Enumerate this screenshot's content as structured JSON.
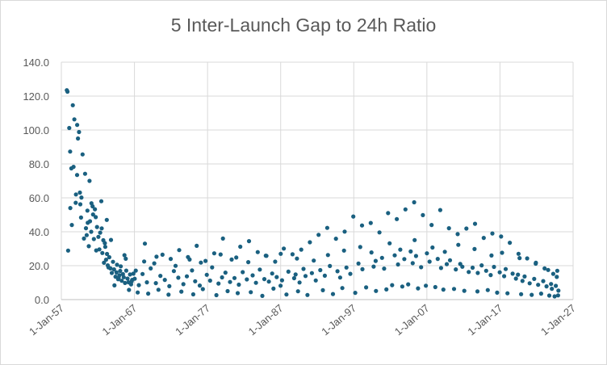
{
  "chart_data": {
    "type": "scatter",
    "title": "5 Inter-Launch Gap to 24h Ratio",
    "xlabel": "",
    "ylabel": "",
    "x_axis": {
      "type": "date",
      "min": "1957-01-01",
      "max": "2027-01-01",
      "ticks": [
        "1-Jan-57",
        "1-Jan-67",
        "1-Jan-77",
        "1-Jan-87",
        "1-Jan-97",
        "1-Jan-07",
        "1-Jan-17",
        "1-Jan-27"
      ]
    },
    "y_axis": {
      "min": 0,
      "max": 140,
      "ticks": [
        "0.0",
        "20.0",
        "40.0",
        "60.0",
        "80.0",
        "100.0",
        "120.0",
        "140.0"
      ]
    },
    "grid": true,
    "legend": "none",
    "marker_color": "#1a6080",
    "series": [
      {
        "x": [
          "1957-10-04",
          "1957-11-03",
          "1958-02-01",
          "1958-03-17",
          "1958-03-26",
          "1958-05-15",
          "1958-07-26",
          "1958-10-11",
          "1958-12-18",
          "1959-01-02",
          "1959-02-28",
          "1959-04-13",
          "1959-06-03",
          "1959-08-07",
          "1959-09-12",
          "1959-10-04",
          "1959-11-26",
          "1960-02-04",
          "1960-04-01",
          "1960-05-15",
          "1960-07-28",
          "1960-08-12",
          "1960-10-04",
          "1960-12-01",
          "1961-01-31",
          "1961-02-12",
          "1961-04-12",
          "1961-06-16",
          "1961-08-06",
          "1961-09-13",
          "1961-11-18",
          "1962-01-26",
          "1962-03-16",
          "1962-04-26",
          "1962-06-19",
          "1962-08-11",
          "1962-09-29",
          "1962-11-01",
          "1963-01-04",
          "1963-02-14",
          "1963-04-02",
          "1963-05-09",
          "1963-06-14",
          "1963-07-26",
          "1963-09-21",
          "1963-11-27",
          "1964-01-25",
          "1964-03-19",
          "1964-05-28",
          "1964-07-17",
          "1964-08-14",
          "1964-10-12",
          "1964-12-15",
          "1965-02-16",
          "1965-04-06",
          "1965-06-03",
          "1965-07-16",
          "1965-09-18",
          "1965-11-16",
          "1966-01-22",
          "1966-03-16",
          "1966-05-26",
          "1966-07-18",
          "1966-09-12",
          "1966-11-11",
          "1957-12-06",
          "1958-06-10",
          "1959-03-03",
          "1959-07-16",
          "1960-06-22",
          "1961-05-05",
          "1962-07-10",
          "1963-10-17",
          "1964-04-08",
          "1965-01-19",
          "1965-10-26",
          "1966-08-10",
          "1958-09-01",
          "1960-11-10",
          "1962-12-14",
          "1964-11-05",
          "1966-04-03",
          "1961-10-10",
          "1963-03-21",
          "1965-08-21"
        ],
        "y": [
          123.5,
          122.6,
          101.2,
          87.3,
          54.0,
          77.4,
          114.6,
          106.3,
          57.1,
          62.0,
          73.5,
          95.0,
          98.8,
          56.2,
          48.4,
          60.2,
          85.6,
          36.0,
          74.2,
          42.1,
          52.5,
          45.3,
          31.5,
          46.2,
          40.0,
          56.8,
          55.0,
          35.7,
          53.3,
          48.6,
          42.8,
          37.0,
          29.6,
          39.5,
          58.0,
          27.5,
          35.0,
          21.7,
          31.1,
          23.5,
          26.9,
          20.2,
          19.0,
          25.0,
          18.4,
          15.7,
          22.3,
          17.8,
          13.5,
          16.0,
          20.5,
          12.0,
          14.4,
          19.6,
          11.1,
          15.0,
          13.2,
          9.8,
          17.1,
          12.4,
          10.2,
          14.8,
          9.0,
          11.6,
          15.3,
          28.9,
          44.0,
          103.0,
          63.1,
          38.0,
          50.2,
          42.0,
          35.2,
          8.4,
          16.9,
          24.1,
          10.6,
          78.3,
          70.0,
          33.3,
          12.7,
          5.7,
          29.0,
          47.0,
          26.2
        ]
      },
      {
        "x": [
          "1967-03-10",
          "1968-06-05",
          "1969-09-18",
          "1970-11-03",
          "1971-12-20",
          "1973-02-14",
          "1974-04-28",
          "1975-07-09",
          "1976-09-21",
          "1977-11-30",
          "1979-02-08",
          "1980-04-17",
          "1981-06-25",
          "1982-09-03",
          "1983-11-12",
          "1985-01-20",
          "1986-03-31",
          "1987-06-08",
          "1988-08-16",
          "1989-10-24",
          "1990-12-31",
          "1992-03-09",
          "1993-05-17",
          "1994-07-25",
          "1995-10-02",
          "1996-12-10",
          "1998-02-17",
          "1999-04-27",
          "2000-07-05",
          "2001-09-12",
          "2002-11-20",
          "2004-01-28",
          "2005-04-07",
          "2006-06-15",
          "2007-08-23",
          "2008-10-31",
          "2010-01-08",
          "2011-03-18",
          "2012-05-26",
          "2013-08-03",
          "2014-10-11",
          "2015-12-19",
          "2017-02-26",
          "2018-05-06",
          "2019-07-14",
          "2020-09-21",
          "2021-11-29",
          "2023-02-06",
          "2024-04-15",
          "2024-11-01"
        ],
        "y": [
          17.1,
          33.0,
          21.4,
          26.5,
          24.0,
          29.2,
          25.1,
          31.7,
          22.8,
          27.3,
          36.0,
          23.6,
          31.2,
          34.5,
          28.0,
          25.8,
          22.4,
          30.1,
          26.7,
          29.5,
          33.8,
          38.2,
          42.3,
          35.9,
          40.1,
          49.0,
          43.7,
          45.2,
          39.6,
          51.0,
          47.5,
          53.2,
          57.4,
          49.8,
          44.0,
          52.8,
          42.1,
          38.6,
          41.9,
          44.7,
          36.4,
          39.0,
          37.2,
          33.5,
          27.0,
          24.3,
          21.7,
          18.4,
          15.2,
          17.0
        ]
      },
      {
        "x": [
          "1967-06-12",
          "1968-11-20",
          "1970-04-15",
          "1971-09-02",
          "1973-06-01",
          "1975-01-15",
          "1976-05-10",
          "1978-03-20",
          "1979-10-01",
          "1981-02-14",
          "1982-12-01",
          "1984-06-30",
          "1986-01-08",
          "1987-10-20",
          "1989-05-15",
          "1990-08-30",
          "1992-10-10",
          "1994-02-25",
          "1995-06-10",
          "1997-03-14",
          "1998-09-09",
          "2000-01-15",
          "2001-06-20",
          "2002-03-30",
          "2003-08-22",
          "2004-06-10",
          "2005-10-17",
          "2006-11-11",
          "2008-02-25",
          "2009-04-04",
          "2010-09-19",
          "2012-02-14",
          "2013-11-30",
          "2015-05-01",
          "2016-08-12",
          "2018-01-10",
          "2019-11-20",
          "2021-05-05",
          "2022-08-18",
          "2023-09-30",
          "2024-06-20",
          "2024-12-10"
        ],
        "y": [
          4.2,
          3.5,
          5.8,
          2.9,
          4.7,
          3.1,
          6.2,
          2.6,
          5.0,
          3.8,
          4.4,
          2.2,
          6.5,
          3.0,
          4.9,
          2.7,
          5.5,
          3.3,
          6.8,
          4.0,
          7.2,
          5.1,
          6.0,
          8.5,
          7.7,
          9.0,
          6.6,
          8.2,
          7.4,
          5.9,
          6.3,
          5.2,
          4.8,
          5.6,
          4.1,
          3.7,
          3.2,
          2.8,
          3.5,
          2.4,
          1.9,
          2.5
        ]
      },
      {
        "x": [
          "1967-01-15",
          "1967-08-08",
          "1968-02-10",
          "1968-09-14",
          "1969-03-22",
          "1969-12-06",
          "1970-07-19",
          "1971-02-27",
          "1971-10-11",
          "1972-05-24",
          "1972-12-30",
          "1973-09-12",
          "1974-03-05",
          "1974-11-17",
          "1975-04-22",
          "1975-12-09",
          "1976-11-25",
          "1977-05-07",
          "1977-08-19",
          "1978-07-02",
          "1978-12-28",
          "1979-06-15",
          "1980-01-30",
          "1980-09-08",
          "1981-04-11",
          "1981-10-23",
          "1982-05-19",
          "1983-03-04",
          "1983-08-15",
          "1984-02-27",
          "1984-10-09",
          "1985-05-22",
          "1985-11-03",
          "1986-06-17",
          "1986-12-29",
          "1987-03-12",
          "1988-01-24",
          "1988-11-05",
          "1989-01-17",
          "1989-08-01",
          "1990-02-13",
          "1990-05-27",
          "1991-04-09",
          "1991-10-21",
          "1992-06-02",
          "1993-01-14",
          "1993-09-26",
          "1994-10-08",
          "1995-02-19",
          "1995-12-31",
          "1996-07-13",
          "1997-08-25",
          "1998-03-08",
          "1999-09-19",
          "1999-12-31",
          "2000-11-12",
          "2001-02-24",
          "2002-08-07",
          "2003-01-19",
          "2003-11-30",
          "2004-10-13",
          "2005-01-25",
          "2005-07-08",
          "2006-03-20",
          "2007-01-02",
          "2007-05-14",
          "2008-06-26",
          "2008-12-07",
          "2009-09-20",
          "2010-03-03",
          "2010-12-15",
          "2011-07-28",
          "2011-11-08",
          "2012-09-21",
          "2013-04-04",
          "2013-12-16",
          "2014-06-28",
          "2015-02-09",
          "2015-09-22",
          "2016-03-05",
          "2016-12-17",
          "2017-07-30",
          "2017-10-11",
          "2018-09-23",
          "2019-03-07",
          "2019-06-19",
          "2020-01-31",
          "2020-05-13",
          "2021-01-24",
          "2021-09-06",
          "2022-03-20",
          "2022-12-01",
          "2023-05-14",
          "2023-12-26",
          "2024-02-07",
          "2024-08-20",
          "2024-12-28",
          "1968-04-30",
          "1970-01-08",
          "1972-08-15",
          "1974-07-20",
          "1976-02-02",
          "1978-10-14",
          "1980-12-05",
          "1982-07-30",
          "1984-12-20",
          "1987-01-05",
          "1989-03-25",
          "1991-07-14",
          "1993-06-22",
          "1995-09-03",
          "1997-11-18",
          "1999-06-04",
          "2001-11-27",
          "2003-05-12",
          "2005-04-30",
          "2007-10-08",
          "2009-06-15",
          "2011-04-22",
          "2013-07-11",
          "2015-11-03",
          "2017-04-15",
          "2019-09-08",
          "2021-11-20",
          "2023-08-02",
          "2024-10-10"
        ],
        "y": [
          12.3,
          8.5,
          15.1,
          10.2,
          18.4,
          9.7,
          14.0,
          11.6,
          7.9,
          16.8,
          12.9,
          9.1,
          13.7,
          17.2,
          10.8,
          8.3,
          14.6,
          11.2,
          19.0,
          9.5,
          13.1,
          15.9,
          10.4,
          12.7,
          8.8,
          16.2,
          11.9,
          14.3,
          9.9,
          17.7,
          12.1,
          10.6,
          15.4,
          13.3,
          8.2,
          11.4,
          16.5,
          12.6,
          14.8,
          10.1,
          18.1,
          13.9,
          15.6,
          11.3,
          17.4,
          14.1,
          19.8,
          16.7,
          13.0,
          18.9,
          15.2,
          21.3,
          17.9,
          19.5,
          22.8,
          24.6,
          18.3,
          26.1,
          20.7,
          23.9,
          28.4,
          21.5,
          25.7,
          19.1,
          27.3,
          22.4,
          24.0,
          18.6,
          20.9,
          23.2,
          17.8,
          21.0,
          19.4,
          16.3,
          18.8,
          15.7,
          20.2,
          17.0,
          14.5,
          19.3,
          16.1,
          13.8,
          18.0,
          15.3,
          12.4,
          14.7,
          11.0,
          13.6,
          9.6,
          12.2,
          8.7,
          10.9,
          7.8,
          9.2,
          6.4,
          8.1,
          5.3,
          22.5,
          25.3,
          19.9,
          23.6,
          21.8,
          26.6,
          24.8,
          22.1,
          25.9,
          27.0,
          24.2,
          23.0,
          26.3,
          28.9,
          31.0,
          27.8,
          33.2,
          29.5,
          35.1,
          30.7,
          28.2,
          32.3,
          29.8,
          26.0,
          27.6,
          24.5,
          21.2,
          17.5,
          13.4
        ]
      }
    ]
  }
}
